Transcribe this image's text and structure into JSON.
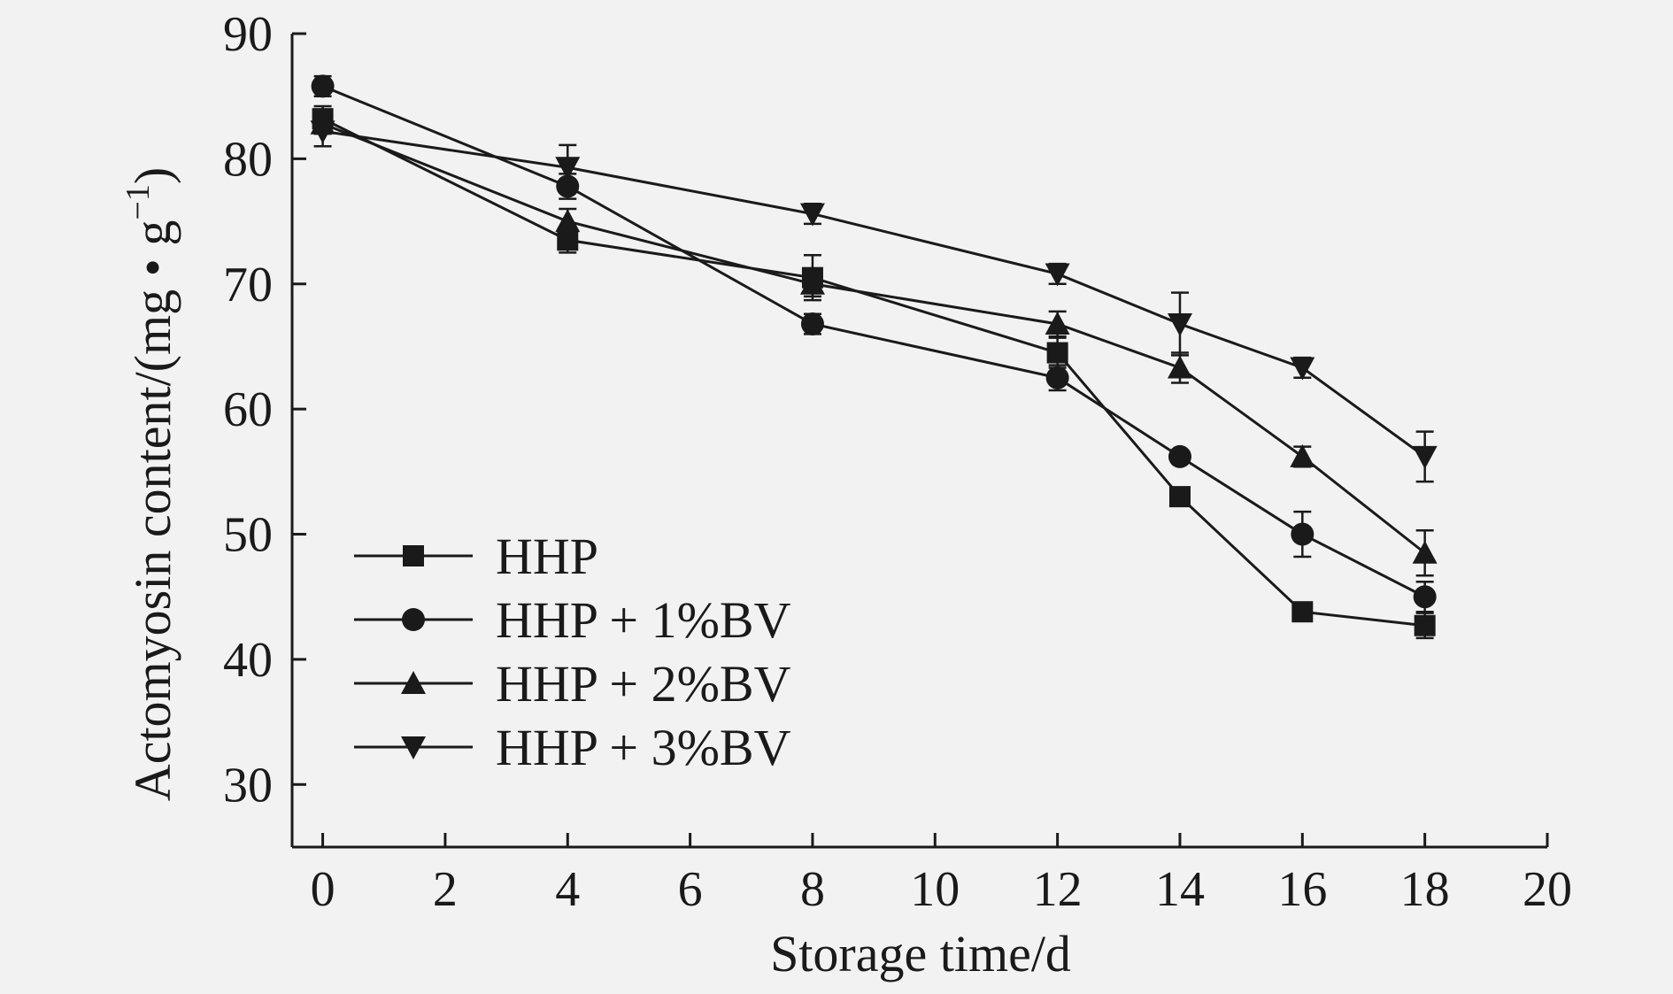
{
  "chart_data": {
    "type": "line",
    "xlabel": "Storage time/d",
    "ylabel": "Actomyosin content/(mg • g",
    "ylabel_sup": "−1",
    "ylabel_close": ")",
    "xlim": [
      -0.5,
      20
    ],
    "ylim": [
      25,
      90
    ],
    "x_ticks": [
      0,
      2,
      4,
      6,
      8,
      10,
      12,
      14,
      16,
      18,
      20
    ],
    "y_ticks": [
      30,
      40,
      50,
      60,
      70,
      80,
      90
    ],
    "x": [
      0,
      4,
      8,
      12,
      14,
      16,
      18
    ],
    "grid": false,
    "legend_position": "bottom-left",
    "series": [
      {
        "name": "HHP",
        "marker": "square",
        "values": [
          83.2,
          73.5,
          70.5,
          64.5,
          53.0,
          43.8,
          42.7
        ],
        "errors": [
          1.0,
          1.0,
          1.8,
          1.2,
          0.5,
          0.5,
          1.0
        ]
      },
      {
        "name": "HHP + 1%BV",
        "marker": "circle",
        "values": [
          85.8,
          77.8,
          66.8,
          62.5,
          56.2,
          50.0,
          45.0
        ],
        "errors": [
          0.8,
          1.0,
          0.8,
          1.0,
          0.5,
          1.8,
          1.2
        ]
      },
      {
        "name": "HHP + 2%BV",
        "marker": "triangle-up",
        "values": [
          82.8,
          75.0,
          70.0,
          66.8,
          63.3,
          56.2,
          48.5
        ],
        "errors": [
          0.8,
          1.0,
          1.0,
          1.0,
          1.2,
          0.8,
          1.8
        ]
      },
      {
        "name": "HHP + 3%BV",
        "marker": "triangle-down",
        "values": [
          82.2,
          79.3,
          75.6,
          70.8,
          66.8,
          63.3,
          56.2
        ],
        "errors": [
          1.2,
          1.8,
          0.8,
          0.8,
          2.5,
          0.8,
          2.0
        ]
      }
    ]
  }
}
